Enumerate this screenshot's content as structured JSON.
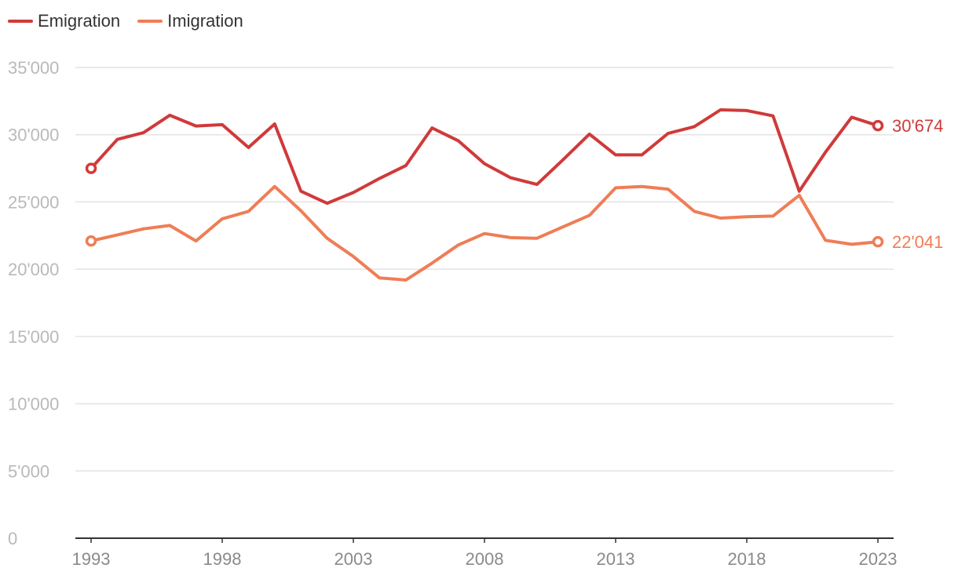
{
  "chart_data": {
    "type": "line",
    "title": "",
    "xlabel": "",
    "ylabel": "",
    "legend_position": "top-left",
    "grid": true,
    "ylim": [
      0,
      35000
    ],
    "xlim": [
      1993,
      2023
    ],
    "y_ticks": [
      0,
      5000,
      10000,
      15000,
      20000,
      25000,
      30000,
      35000
    ],
    "y_tick_labels": [
      "0",
      "5'000",
      "10'000",
      "15'000",
      "20'000",
      "25'000",
      "30'000",
      "35'000"
    ],
    "x_ticks": [
      1993,
      1998,
      2003,
      2008,
      2013,
      2018,
      2023
    ],
    "x_tick_labels": [
      "1993",
      "1998",
      "2003",
      "2008",
      "2013",
      "2018",
      "2023"
    ],
    "x": [
      1993,
      1994,
      1995,
      1996,
      1997,
      1998,
      1999,
      2000,
      2001,
      2002,
      2003,
      2004,
      2005,
      2006,
      2007,
      2008,
      2009,
      2010,
      2011,
      2012,
      2013,
      2014,
      2015,
      2016,
      2017,
      2018,
      2019,
      2020,
      2021,
      2022,
      2023
    ],
    "series": [
      {
        "name": "Emigration",
        "color": "#d03a3a",
        "end_label": "30'674",
        "values": [
          27500,
          29650,
          30150,
          31450,
          30650,
          30750,
          29050,
          30800,
          25800,
          24900,
          25700,
          26750,
          27700,
          30500,
          29550,
          27850,
          26800,
          26300,
          28150,
          30050,
          28500,
          28500,
          30100,
          30600,
          31850,
          31800,
          31400,
          25800,
          28700,
          31300,
          30674
        ]
      },
      {
        "name": "Imigration",
        "color": "#ef7d56",
        "end_label": "22'041",
        "values": [
          22100,
          22550,
          23000,
          23250,
          22100,
          23750,
          24300,
          26150,
          24350,
          22300,
          20950,
          19350,
          19200,
          20450,
          21800,
          22650,
          22350,
          22300,
          23150,
          24000,
          26050,
          26150,
          25950,
          24300,
          23800,
          23900,
          23950,
          25500,
          22150,
          21850,
          22041
        ]
      }
    ]
  }
}
